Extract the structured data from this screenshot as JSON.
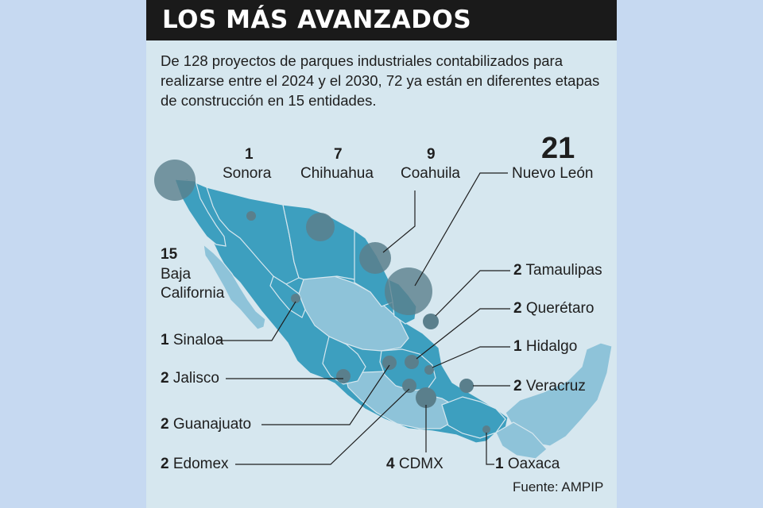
{
  "title": "LOS MÁS AVANZADOS",
  "intro": "De 128 proyectos de parques industriales contabilizados para realizarse entre el 2024 y el 2030, 72 ya están en diferentes etapas de construcción en 15 entidades.",
  "states": {
    "sonora": {
      "count": "1",
      "name": "Sonora"
    },
    "chihuahua": {
      "count": "7",
      "name": "Chihuahua"
    },
    "coahuila": {
      "count": "9",
      "name": "Coahuila"
    },
    "nuevo_leon": {
      "count": "21",
      "name": "Nuevo León"
    },
    "baja_california": {
      "count": "15",
      "name_line1": "Baja",
      "name_line2": "California"
    },
    "tamaulipas": {
      "count": "2",
      "name": "Tamaulipas"
    },
    "queretaro": {
      "count": "2",
      "name": "Querétaro"
    },
    "sinaloa": {
      "count": "1",
      "name": "Sinaloa"
    },
    "hidalgo": {
      "count": "1",
      "name": "Hidalgo"
    },
    "jalisco": {
      "count": "2",
      "name": "Jalisco"
    },
    "veracruz": {
      "count": "2",
      "name": "Veracruz"
    },
    "guanajuato": {
      "count": "2",
      "name": "Guanajuato"
    },
    "edomex": {
      "count": "2",
      "name": "Edomex"
    },
    "cdmx": {
      "count": "4",
      "name": "CDMX"
    },
    "oaxaca": {
      "count": "1",
      "name": "Oaxaca"
    }
  },
  "source": "Fuente: AMPIP",
  "colors": {
    "background": "#c6d9f1",
    "panel": "#d6e7ef",
    "header": "#1a1a1a",
    "project_states": "#3d9fbf",
    "other_states": "#8ec3d9",
    "bubbles": "#5a7f8c"
  }
}
